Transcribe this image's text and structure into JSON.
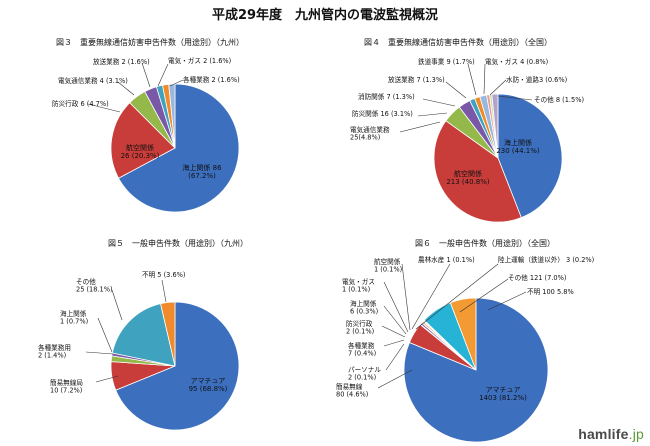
{
  "page_title": "平成29年度　九州管内の電波監視概況",
  "watermark": {
    "main": "hamlife",
    "suffix": ".jp"
  },
  "chart_data": [
    {
      "type": "pie",
      "title": "図３　重要無線通信妨害申告件数（用途別）（九州）",
      "slices": [
        {
          "label": "海上関係",
          "text": "海上関係 86\n(67.2%)",
          "value": 86,
          "pct": 67.2,
          "color": "#3d6fbf"
        },
        {
          "label": "航空関係",
          "text": "航空関係\n26 (20.3%)",
          "value": 26,
          "pct": 20.3,
          "color": "#c83d3a"
        },
        {
          "label": "防災行政",
          "text": "防災行政 6 (4.7%)",
          "value": 6,
          "pct": 4.7,
          "color": "#94b84a"
        },
        {
          "label": "電気通信業務",
          "text": "電気通信業務 4 (3.1%)",
          "value": 4,
          "pct": 3.1,
          "color": "#7a58a8"
        },
        {
          "label": "放送業務",
          "text": "放送業務 2 (1.6%)",
          "value": 2,
          "pct": 1.6,
          "color": "#3fa2bf"
        },
        {
          "label": "電気・ガス",
          "text": "電気・ガス 2 (1.6%)",
          "value": 2,
          "pct": 1.6,
          "color": "#f08a2a"
        },
        {
          "label": "各種業務",
          "text": "各種業務 2 (1.6%)",
          "value": 2,
          "pct": 1.6,
          "color": "#9ab8dd"
        }
      ]
    },
    {
      "type": "pie",
      "title": "図４　重要無線通信妨害申告件数（用途別）（全国）",
      "slices": [
        {
          "label": "海上関係",
          "text": "海上関係\n230 (44.1%)",
          "value": 230,
          "pct": 44.1,
          "color": "#3d6fbf"
        },
        {
          "label": "航空関係",
          "text": "航空関係\n213 (40.8%)",
          "value": 213,
          "pct": 40.8,
          "color": "#c83d3a"
        },
        {
          "label": "電気通信業務",
          "text": "電気通信業務\n25(4.8%)",
          "value": 25,
          "pct": 4.8,
          "color": "#94b84a"
        },
        {
          "label": "防災関係",
          "text": "防災関係 16 (3.1%)",
          "value": 16,
          "pct": 3.1,
          "color": "#7a58a8"
        },
        {
          "label": "消防関係",
          "text": "消防関係 7 (1.3%)",
          "value": 7,
          "pct": 1.3,
          "color": "#3fa2bf"
        },
        {
          "label": "放送業務",
          "text": "放送業務 7 (1.3%)",
          "value": 7,
          "pct": 1.3,
          "color": "#f08a2a"
        },
        {
          "label": "鉄道事業",
          "text": "鉄道事業 9 (1.7%)",
          "value": 9,
          "pct": 1.7,
          "color": "#9ab8dd"
        },
        {
          "label": "電気・ガス",
          "text": "電気・ガス 4 (0.8%)",
          "value": 4,
          "pct": 0.8,
          "color": "#e49e9c"
        },
        {
          "label": "水防・道路",
          "text": "水防・道路3 (0.6%)",
          "value": 3,
          "pct": 0.6,
          "color": "#c7dc9b"
        },
        {
          "label": "その他",
          "text": "その他 8 (1.5%)",
          "value": 8,
          "pct": 1.5,
          "color": "#b3a2cc"
        }
      ]
    },
    {
      "type": "pie",
      "title": "図５　一般申告件数（用途別）（九州）",
      "slices": [
        {
          "label": "アマチュア",
          "text": "アマチュア\n95 (68.8%)",
          "value": 95,
          "pct": 68.8,
          "color": "#3d6fbf"
        },
        {
          "label": "簡易無線局",
          "text": "簡易無線局\n10 (7.2%)",
          "value": 10,
          "pct": 7.2,
          "color": "#c83d3a"
        },
        {
          "label": "各種業務用",
          "text": "各種業務用\n2 (1.4%)",
          "value": 2,
          "pct": 1.4,
          "color": "#94b84a"
        },
        {
          "label": "海上関係",
          "text": "海上関係\n1 (0.7%)",
          "value": 1,
          "pct": 0.7,
          "color": "#7a58a8"
        },
        {
          "label": "その他",
          "text": "その他\n25 (18.1%)",
          "value": 25,
          "pct": 18.1,
          "color": "#3fa2bf"
        },
        {
          "label": "不明",
          "text": "不明 5 (3.6%)",
          "value": 5,
          "pct": 3.6,
          "color": "#f08a2a"
        }
      ]
    },
    {
      "type": "pie",
      "title": "図６　一般申告件数（用途別）（全国）",
      "slices": [
        {
          "label": "アマチュア",
          "text": "アマチュア\n1403 (81.2%)",
          "value": 1403,
          "pct": 81.2,
          "color": "#3d6fbf"
        },
        {
          "label": "簡易無線",
          "text": "簡易無線\n80 (4.6%)",
          "value": 80,
          "pct": 4.6,
          "color": "#c83d3a"
        },
        {
          "label": "パーソナル",
          "text": "パーソナル\n2 (0.1%)",
          "value": 2,
          "pct": 0.1,
          "color": "#94b84a"
        },
        {
          "label": "各種業務",
          "text": "各種業務\n7 (0.4%)",
          "value": 7,
          "pct": 0.4,
          "color": "#7a58a8"
        },
        {
          "label": "防災行政",
          "text": "防災行政\n2 (0.1%)",
          "value": 2,
          "pct": 0.1,
          "color": "#3fa2bf"
        },
        {
          "label": "海上関係",
          "text": "海上関係\n6 (0.3%)",
          "value": 6,
          "pct": 0.3,
          "color": "#f08a2a"
        },
        {
          "label": "電気・ガス",
          "text": "電気・ガス\n1 (0.1%)",
          "value": 1,
          "pct": 0.1,
          "color": "#9ab8dd"
        },
        {
          "label": "航空関係",
          "text": "航空関係\n1 (0.1%)",
          "value": 1,
          "pct": 0.1,
          "color": "#e49e9c"
        },
        {
          "label": "農林水産",
          "text": "農林水産 1 (0.1%)",
          "value": 1,
          "pct": 0.1,
          "color": "#c7dc9b"
        },
        {
          "label": "陸上運輸（鉄道以外）",
          "text": "陸上運輸（鉄道以外） 3 (0.2%)",
          "value": 3,
          "pct": 0.2,
          "color": "#b3a2cc"
        },
        {
          "label": "その他",
          "text": "その他 121 (7.0%)",
          "value": 121,
          "pct": 7.0,
          "color": "#27b3d6"
        },
        {
          "label": "不明",
          "text": "不明 100 5.8%",
          "value": 100,
          "pct": 5.8,
          "color": "#f39a32"
        }
      ]
    }
  ]
}
